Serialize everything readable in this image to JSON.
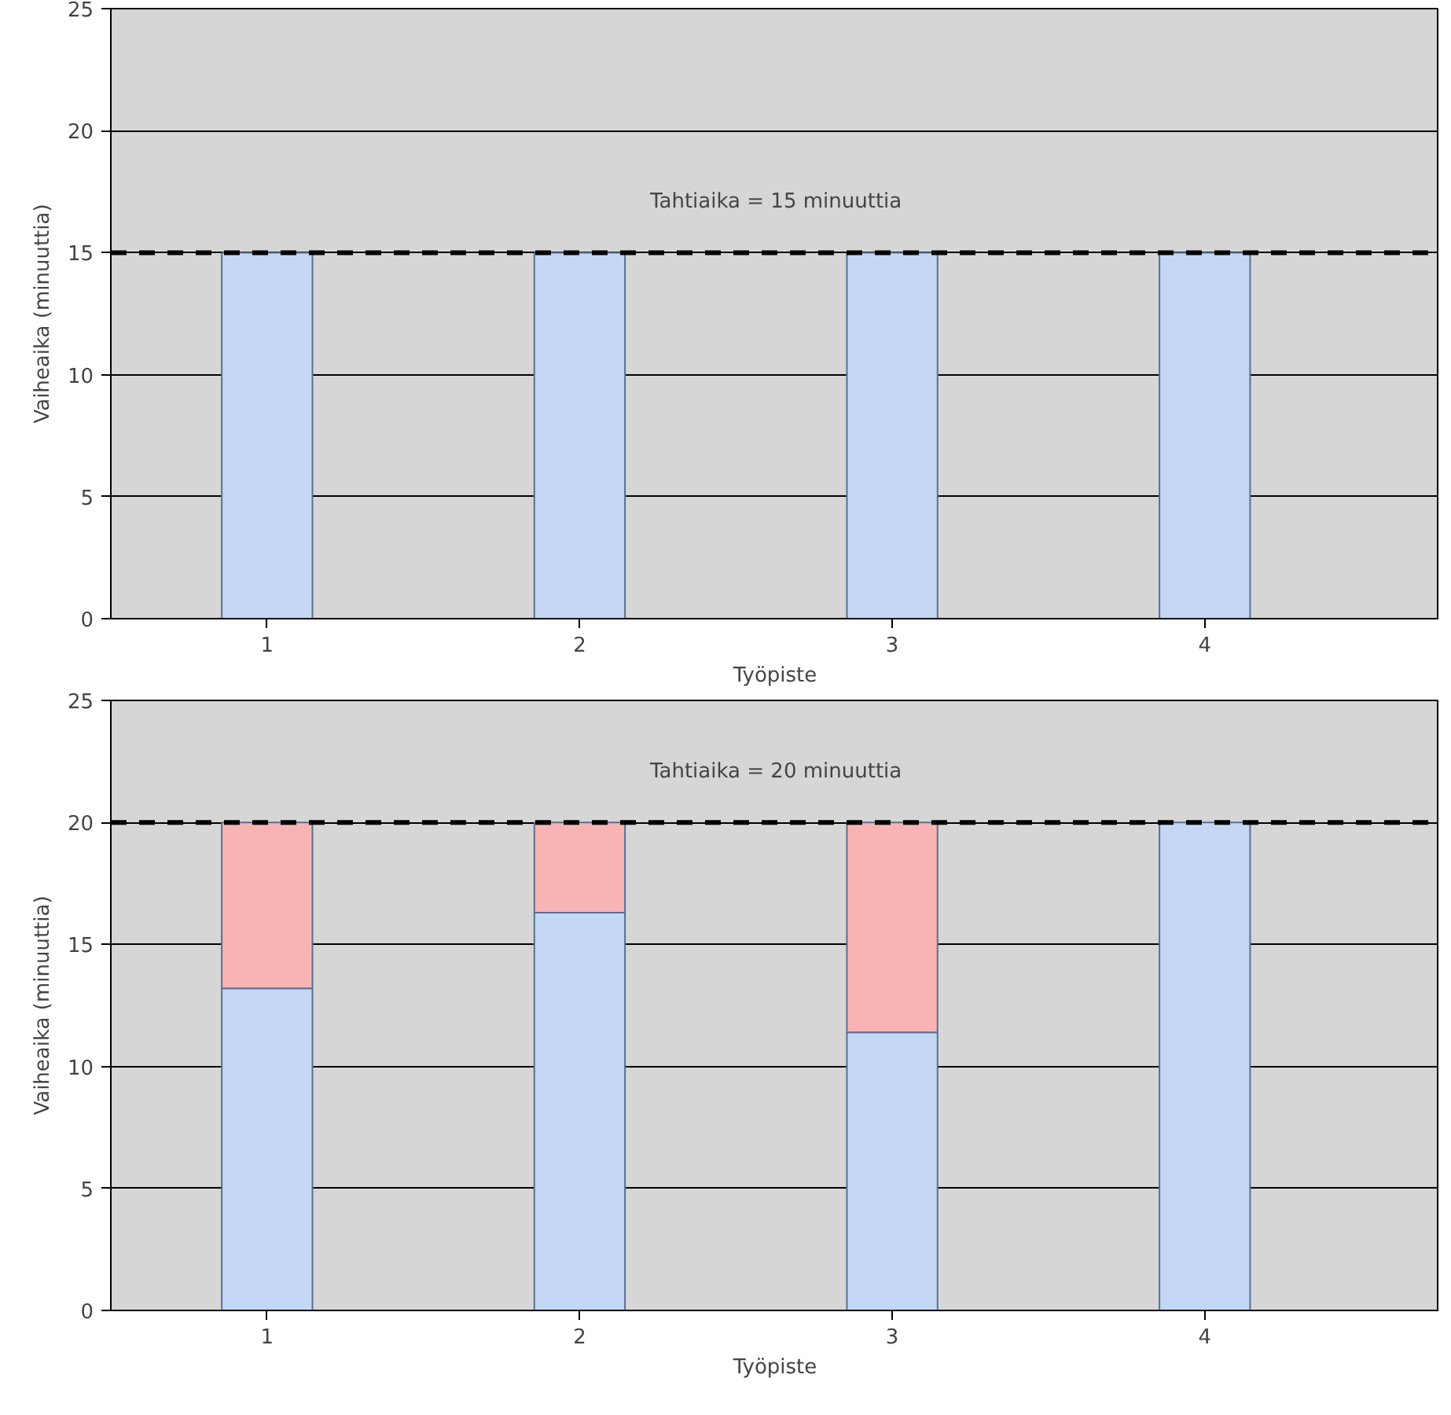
{
  "chart_data": [
    {
      "type": "bar",
      "categories": [
        "1",
        "2",
        "3",
        "4"
      ],
      "values": [
        15,
        15,
        15,
        15
      ],
      "color": "#c4d8f6",
      "xlabel": "Työpiste",
      "ylabel": "Vaiheaika (minuuttia)",
      "ylim": [
        0,
        25
      ],
      "yticks": [
        0,
        5,
        10,
        15,
        20,
        25
      ],
      "grid": "y",
      "ref_lines": [
        {
          "axis": "y",
          "value": 15,
          "label": "Tahtiaika = 15 minuuttia",
          "color": "#000000",
          "line_style": "dashed"
        }
      ]
    },
    {
      "type": "bar",
      "stacked": true,
      "categories": [
        "1",
        "2",
        "3",
        "4"
      ],
      "xlabel": "Työpiste",
      "ylabel": "Vaiheaika (minuuttia)",
      "ylim": [
        0,
        25
      ],
      "yticks": [
        0,
        5,
        10,
        15,
        20,
        25
      ],
      "grid": "y",
      "series": [
        {
          "color": "#c4d8f6",
          "values": [
            13.2,
            16.3,
            11.4,
            20
          ]
        },
        {
          "color": "#f8b4b4",
          "values": [
            6.8,
            3.7,
            8.6,
            0
          ]
        }
      ],
      "ref_lines": [
        {
          "axis": "y",
          "value": 20,
          "label": "Tahtiaika = 20 minuuttia",
          "color": "#000000",
          "line_style": "dashed"
        }
      ]
    }
  ]
}
